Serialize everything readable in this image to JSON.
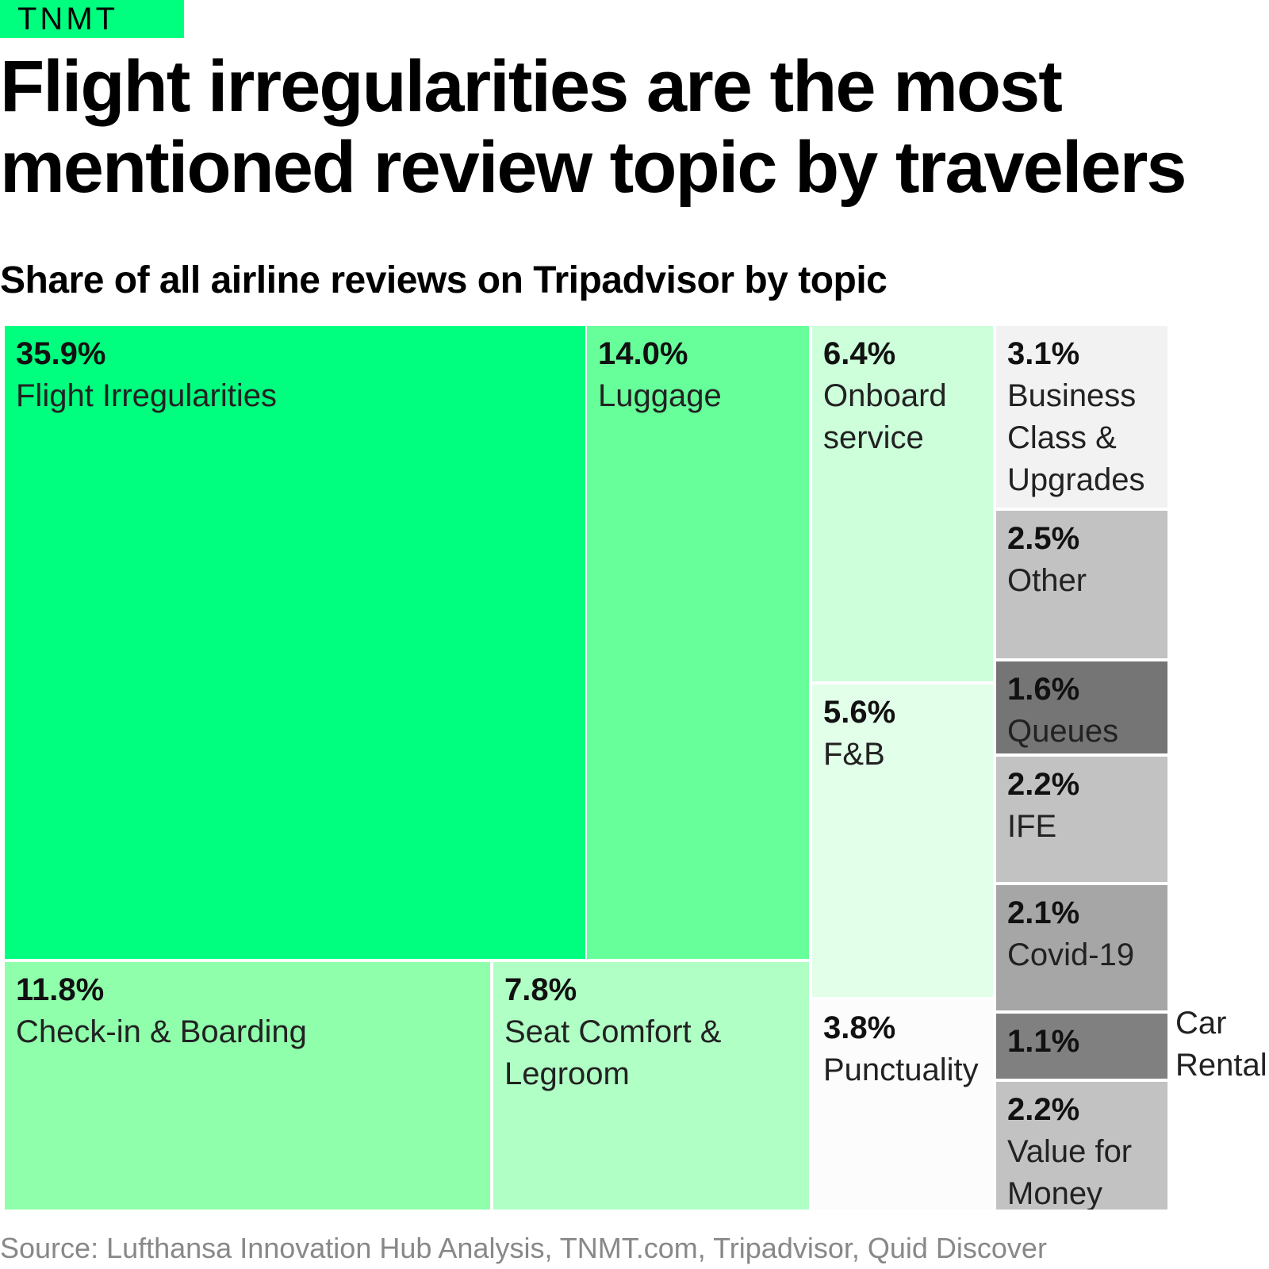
{
  "brand": "TNMT",
  "title": "Flight irregularities are the most mentioned review topic by travelers",
  "subtitle": "Share of all airline reviews on Tripadvisor by topic",
  "source": "Source: Lufthansa Innovation Hub Analysis, TNMT.com, Tripadvisor, Quid Discover",
  "chart_data": {
    "type": "treemap",
    "unit": "%",
    "items": [
      {
        "label": "Flight Irregularities",
        "value": 35.9,
        "value_label": "35.9%",
        "color": "#00ff7f"
      },
      {
        "label": "Luggage",
        "value": 14.0,
        "value_label": "14.0%",
        "color": "#66ff99"
      },
      {
        "label": "Check-in & Boarding",
        "value": 11.8,
        "value_label": "11.8%",
        "color": "#8fffab"
      },
      {
        "label": "Seat Comfort & Legroom",
        "value": 7.8,
        "value_label": "7.8%",
        "color": "#b0ffc5"
      },
      {
        "label": "Onboard service",
        "value": 6.4,
        "value_label": "6.4%",
        "color": "#ccffda"
      },
      {
        "label": "F&B",
        "value": 5.6,
        "value_label": "5.6%",
        "color": "#e2ffe9"
      },
      {
        "label": "Punctuality",
        "value": 3.8,
        "value_label": "3.8%",
        "color": "#fcfcfc"
      },
      {
        "label": "Business Class & Upgrades",
        "value": 3.1,
        "value_label": "3.1%",
        "color": "#f2f2f2"
      },
      {
        "label": "Other",
        "value": 2.5,
        "value_label": "2.5%",
        "color": "#c2c2c2"
      },
      {
        "label": "Queues",
        "value": 1.6,
        "value_label": "1.6%",
        "color": "#757575"
      },
      {
        "label": "IFE",
        "value": 2.2,
        "value_label": "2.2%",
        "color": "#c2c2c2"
      },
      {
        "label": "Covid-19",
        "value": 2.1,
        "value_label": "2.1%",
        "color": "#a6a6a6"
      },
      {
        "label": "Car Rental",
        "value": 1.1,
        "value_label": "1.1%",
        "color": "#808080"
      },
      {
        "label": "Value for Money",
        "value": 2.2,
        "value_label": "2.2%",
        "color": "#c2c2c2"
      }
    ]
  }
}
